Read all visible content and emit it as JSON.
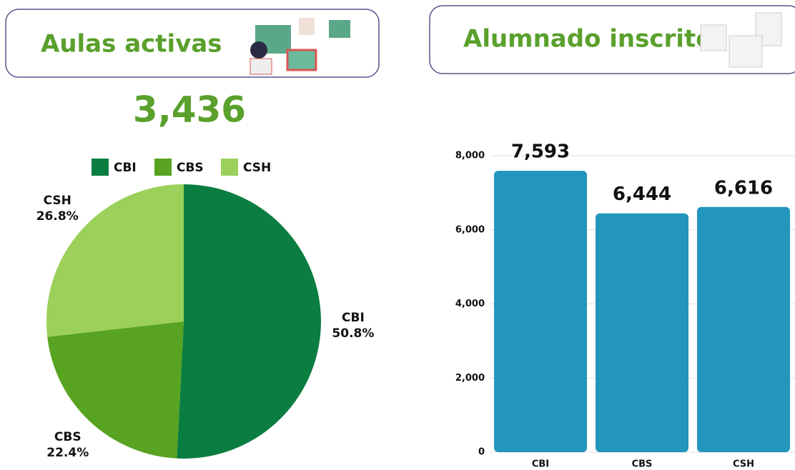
{
  "chart_data": [
    {
      "type": "pie",
      "title": "Aulas activas",
      "annotations": [
        "3,436"
      ],
      "categories": [
        "CBI",
        "CBS",
        "CSH"
      ],
      "values": [
        50.8,
        22.4,
        26.8
      ],
      "value_labels": [
        "50.8%",
        "22.4%",
        "26.8%"
      ],
      "colors": [
        "#0a7d40",
        "#58a321",
        "#9bd05a"
      ],
      "legend": "top"
    },
    {
      "type": "bar",
      "title": "Alumnado inscrito",
      "categories": [
        "CBI",
        "CBS",
        "CSH"
      ],
      "values": [
        7593,
        6444,
        6616
      ],
      "value_labels": [
        "7,593",
        "6,444",
        "6,616"
      ],
      "color": "#2296bd",
      "ylim": [
        0,
        8000
      ],
      "yticks": [
        0,
        {
          "value": 2000,
          "label": "2,000"
        },
        {
          "value": 4000,
          "label": "4,000"
        },
        {
          "value": 6000,
          "label": "6,000"
        },
        {
          "value": 8000,
          "label": "8,000"
        }
      ],
      "grid": true
    }
  ]
}
